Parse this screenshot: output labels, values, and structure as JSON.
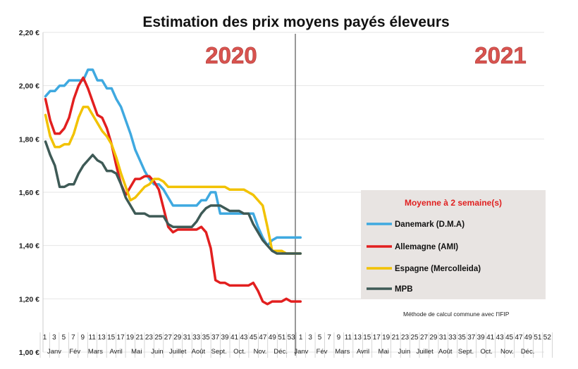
{
  "chart_data": {
    "type": "line",
    "title": "Estimation des prix moyens payés éleveurs",
    "year_labels": [
      "2020",
      "2021"
    ],
    "y_ticks": [
      "2,20 €",
      "2,00 €",
      "1,80 €",
      "1,60 €",
      "1,40 €",
      "1,20 €",
      "1,00 €"
    ],
    "y_tick_values": [
      2.2,
      2.0,
      1.8,
      1.6,
      1.4,
      1.2,
      1.0
    ],
    "ylim": [
      1.0,
      2.2
    ],
    "week_ticks": [
      "1",
      "3",
      "5",
      "7",
      "9",
      "11",
      "13",
      "15",
      "17",
      "19",
      "21",
      "23",
      "25",
      "27",
      "29",
      "31",
      "33",
      "35",
      "37",
      "39",
      "41",
      "43",
      "45",
      "47",
      "49",
      "51",
      "53",
      "1",
      "3",
      "5",
      "7",
      "9",
      "11",
      "13",
      "15",
      "17",
      "19",
      "21",
      "23",
      "25",
      "27",
      "29",
      "31",
      "33",
      "35",
      "37",
      "39",
      "41",
      "43",
      "45",
      "47",
      "49",
      "51",
      "52"
    ],
    "months": [
      "Janv",
      "Fév",
      "Mars",
      "Avril",
      "Mai",
      "Juin",
      "Juillet",
      "Août",
      "Sept.",
      "Oct.",
      "Nov.",
      "Déc.",
      "Janv",
      "Fév",
      "Mars",
      "Avril",
      "Mai",
      "Juin",
      "Juillet",
      "Août",
      "Sept.",
      "Oct.",
      "Nov.",
      "Déc."
    ],
    "legend": {
      "title": "Moyenne à  2 semaine(s)",
      "position": "right"
    },
    "note": "Méthode de calcul commune avec l'IFIP",
    "x_weeks": [
      1,
      2,
      3,
      4,
      5,
      6,
      7,
      8,
      9,
      10,
      11,
      12,
      13,
      14,
      15,
      16,
      17,
      18,
      19,
      20,
      21,
      22,
      23,
      24,
      25,
      26,
      27,
      28,
      29,
      30,
      31,
      32,
      33,
      34,
      35,
      36,
      37,
      38,
      39,
      40,
      41,
      42,
      43,
      44,
      45,
      46,
      47,
      48,
      49,
      50,
      51,
      52,
      53,
      54,
      55
    ],
    "series": [
      {
        "name": "Danemark (D.M.A)",
        "color": "#3fa9e0",
        "values": [
          1.96,
          1.98,
          1.98,
          2.0,
          2.0,
          2.02,
          2.02,
          2.02,
          2.02,
          2.06,
          2.06,
          2.02,
          2.02,
          1.99,
          1.99,
          1.95,
          1.92,
          1.87,
          1.82,
          1.76,
          1.72,
          1.68,
          1.65,
          1.63,
          1.63,
          1.61,
          1.58,
          1.55,
          1.55,
          1.55,
          1.55,
          1.55,
          1.55,
          1.57,
          1.57,
          1.6,
          1.6,
          1.52,
          1.52,
          1.52,
          1.52,
          1.52,
          1.52,
          1.52,
          1.52,
          1.47,
          1.43,
          1.4,
          1.42,
          1.43,
          1.43,
          1.43,
          1.43,
          1.43,
          1.43
        ]
      },
      {
        "name": "Allemagne (AMI)",
        "color": "#e21f1f",
        "values": [
          1.95,
          1.87,
          1.82,
          1.82,
          1.84,
          1.88,
          1.95,
          2.0,
          2.03,
          1.99,
          1.94,
          1.89,
          1.88,
          1.84,
          1.78,
          1.7,
          1.63,
          1.59,
          1.62,
          1.65,
          1.65,
          1.66,
          1.66,
          1.64,
          1.61,
          1.54,
          1.47,
          1.45,
          1.46,
          1.46,
          1.46,
          1.46,
          1.46,
          1.47,
          1.45,
          1.39,
          1.27,
          1.26,
          1.26,
          1.25,
          1.25,
          1.25,
          1.25,
          1.25,
          1.26,
          1.23,
          1.19,
          1.18,
          1.19,
          1.19,
          1.19,
          1.2,
          1.19,
          1.19,
          1.19
        ]
      },
      {
        "name": "Espagne (Mercolleida)",
        "color": "#f2c200",
        "values": [
          1.89,
          1.81,
          1.77,
          1.77,
          1.78,
          1.78,
          1.82,
          1.88,
          1.92,
          1.92,
          1.89,
          1.86,
          1.83,
          1.81,
          1.78,
          1.73,
          1.67,
          1.62,
          1.57,
          1.58,
          1.6,
          1.62,
          1.63,
          1.65,
          1.65,
          1.64,
          1.62,
          1.62,
          1.62,
          1.62,
          1.62,
          1.62,
          1.62,
          1.62,
          1.62,
          1.62,
          1.62,
          1.62,
          1.62,
          1.61,
          1.61,
          1.61,
          1.61,
          1.6,
          1.59,
          1.57,
          1.55,
          1.47,
          1.38,
          1.38,
          1.38,
          1.37,
          1.37,
          1.37,
          1.37
        ]
      },
      {
        "name": "MPB",
        "color": "#3e5a56",
        "values": [
          1.79,
          1.74,
          1.7,
          1.62,
          1.62,
          1.63,
          1.63,
          1.67,
          1.7,
          1.72,
          1.74,
          1.72,
          1.71,
          1.68,
          1.68,
          1.67,
          1.63,
          1.58,
          1.55,
          1.52,
          1.52,
          1.52,
          1.51,
          1.51,
          1.51,
          1.51,
          1.48,
          1.47,
          1.47,
          1.47,
          1.47,
          1.47,
          1.49,
          1.52,
          1.54,
          1.55,
          1.55,
          1.55,
          1.54,
          1.53,
          1.53,
          1.53,
          1.52,
          1.52,
          1.48,
          1.45,
          1.42,
          1.4,
          1.38,
          1.37,
          1.37,
          1.37,
          1.37,
          1.37,
          1.37
        ]
      }
    ]
  }
}
